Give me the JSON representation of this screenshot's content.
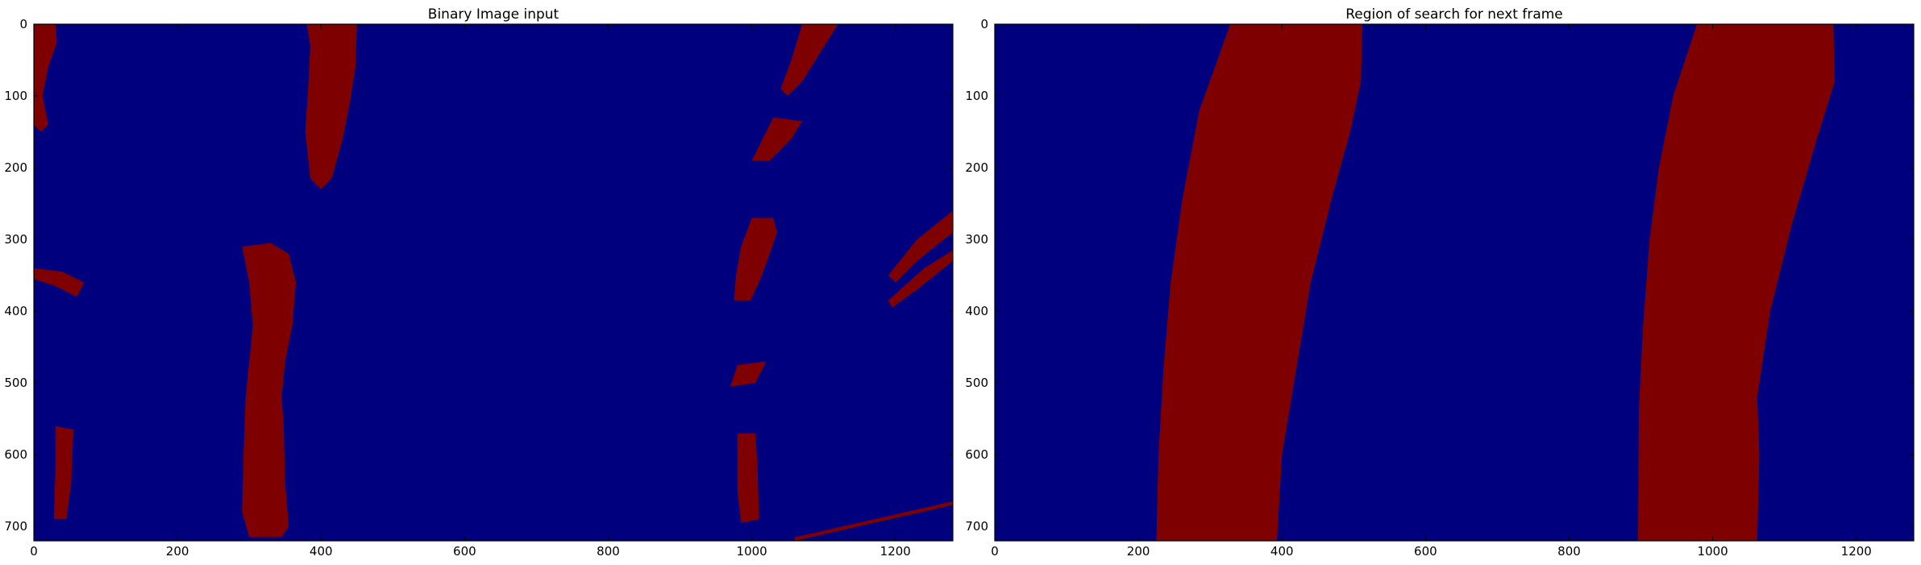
{
  "colors": {
    "background_value_0": "#00007f",
    "lane_value_1": "#7f0000"
  },
  "chart_data": [
    {
      "type": "heatmap",
      "title": "Binary Image input",
      "xlim": [
        0,
        1280
      ],
      "ylim": [
        720,
        0
      ],
      "xticks": [
        "0",
        "200",
        "400",
        "600",
        "800",
        "1000",
        "1200"
      ],
      "yticks": [
        "0",
        "100",
        "200",
        "300",
        "400",
        "500",
        "600",
        "700"
      ],
      "grid": false,
      "colormap": "jet",
      "pixel_values": [
        0,
        1
      ],
      "regions": [
        {
          "name": "left-lane-dashes-top-left",
          "polygon": [
            [
              0,
              0
            ],
            [
              30,
              0
            ],
            [
              32,
              25
            ],
            [
              20,
              60
            ],
            [
              12,
              100
            ],
            [
              20,
              140
            ],
            [
              10,
              150
            ],
            [
              0,
              140
            ]
          ]
        },
        {
          "name": "left-lane-marking",
          "polygon": [
            [
              290,
              310
            ],
            [
              330,
              305
            ],
            [
              355,
              320
            ],
            [
              365,
              360
            ],
            [
              360,
              420
            ],
            [
              350,
              470
            ],
            [
              345,
              520
            ],
            [
              348,
              560
            ],
            [
              350,
              640
            ],
            [
              355,
              700
            ],
            [
              345,
              715
            ],
            [
              300,
              715
            ],
            [
              290,
              680
            ],
            [
              292,
              600
            ],
            [
              295,
              520
            ],
            [
              300,
              470
            ],
            [
              305,
              420
            ],
            [
              300,
              360
            ]
          ]
        },
        {
          "name": "left-lane-marking-upper",
          "polygon": [
            [
              380,
              0
            ],
            [
              450,
              0
            ],
            [
              448,
              60
            ],
            [
              440,
              110
            ],
            [
              430,
              160
            ],
            [
              415,
              215
            ],
            [
              400,
              230
            ],
            [
              385,
              215
            ],
            [
              378,
              150
            ],
            [
              382,
              90
            ],
            [
              385,
              30
            ]
          ]
        },
        {
          "name": "left-shoulder-streaks",
          "polygon": [
            [
              0,
              340
            ],
            [
              40,
              345
            ],
            [
              70,
              360
            ],
            [
              60,
              380
            ],
            [
              30,
              365
            ],
            [
              0,
              355
            ]
          ]
        },
        {
          "name": "left-bottom-marks",
          "polygon": [
            [
              30,
              560
            ],
            [
              55,
              565
            ],
            [
              52,
              640
            ],
            [
              45,
              690
            ],
            [
              28,
              690
            ],
            [
              30,
              620
            ]
          ]
        },
        {
          "name": "right-lane-marking-upper",
          "polygon": [
            [
              1070,
              0
            ],
            [
              1120,
              0
            ],
            [
              1095,
              40
            ],
            [
              1070,
              80
            ],
            [
              1050,
              100
            ],
            [
              1040,
              90
            ],
            [
              1055,
              50
            ]
          ]
        },
        {
          "name": "right-lane-dashes-mid",
          "polygon": [
            [
              1030,
              130
            ],
            [
              1070,
              135
            ],
            [
              1055,
              160
            ],
            [
              1025,
              190
            ],
            [
              1000,
              190
            ],
            [
              1015,
              160
            ]
          ]
        },
        {
          "name": "right-lane-marking-mid",
          "polygon": [
            [
              1000,
              270
            ],
            [
              1030,
              270
            ],
            [
              1035,
              290
            ],
            [
              1025,
              320
            ],
            [
              1010,
              360
            ],
            [
              998,
              385
            ],
            [
              975,
              385
            ],
            [
              978,
              350
            ],
            [
              985,
              310
            ]
          ]
        },
        {
          "name": "right-lane-marking-lower",
          "polygon": [
            [
              980,
              570
            ],
            [
              1005,
              570
            ],
            [
              1008,
              620
            ],
            [
              1010,
              690
            ],
            [
              985,
              695
            ],
            [
              980,
              650
            ]
          ]
        },
        {
          "name": "right-lane-dashes-lower",
          "polygon": [
            [
              980,
              475
            ],
            [
              1020,
              470
            ],
            [
              1005,
              500
            ],
            [
              970,
              505
            ]
          ]
        },
        {
          "name": "right-edge-streaks",
          "polygon": [
            [
              1280,
              260
            ],
            [
              1280,
              290
            ],
            [
              1230,
              330
            ],
            [
              1200,
              360
            ],
            [
              1190,
              350
            ],
            [
              1230,
              300
            ]
          ]
        },
        {
          "name": "right-edge-streaks-2",
          "polygon": [
            [
              1280,
              315
            ],
            [
              1280,
              330
            ],
            [
              1230,
              370
            ],
            [
              1195,
              395
            ],
            [
              1190,
              385
            ],
            [
              1240,
              340
            ]
          ]
        },
        {
          "name": "bottom-diagonal-line",
          "polygon": [
            [
              1060,
              715
            ],
            [
              1280,
              665
            ],
            [
              1280,
              670
            ],
            [
              1060,
              720
            ]
          ]
        }
      ]
    },
    {
      "type": "heatmap",
      "title": "Region of search for next frame",
      "xlim": [
        0,
        1280
      ],
      "ylim": [
        720,
        0
      ],
      "xticks": [
        "0",
        "200",
        "400",
        "600",
        "800",
        "1000",
        "1200"
      ],
      "yticks": [
        "0",
        "100",
        "200",
        "300",
        "400",
        "500",
        "600",
        "700"
      ],
      "grid": false,
      "colormap": "jet",
      "pixel_values": [
        0,
        1
      ],
      "bands": [
        {
          "name": "left-lane-search-region",
          "left_edge": [
            [
              328,
              0
            ],
            [
              285,
              120
            ],
            [
              262,
              240
            ],
            [
              245,
              360
            ],
            [
              235,
              480
            ],
            [
              228,
              600
            ],
            [
              225,
              720
            ]
          ],
          "right_edge": [
            [
              512,
              0
            ],
            [
              510,
              80
            ],
            [
              495,
              150
            ],
            [
              470,
              240
            ],
            [
              440,
              360
            ],
            [
              420,
              480
            ],
            [
              400,
              600
            ],
            [
              393,
              720
            ]
          ]
        },
        {
          "name": "right-lane-search-region",
          "left_edge": [
            [
              978,
              0
            ],
            [
              945,
              100
            ],
            [
              925,
              200
            ],
            [
              912,
              300
            ],
            [
              903,
              420
            ],
            [
              897,
              540
            ],
            [
              896,
              720
            ]
          ],
          "right_edge": [
            [
              1168,
              0
            ],
            [
              1170,
              80
            ],
            [
              1145,
              160
            ],
            [
              1110,
              280
            ],
            [
              1080,
              400
            ],
            [
              1062,
              520
            ],
            [
              1065,
              600
            ],
            [
              1062,
              720
            ]
          ]
        }
      ]
    }
  ]
}
